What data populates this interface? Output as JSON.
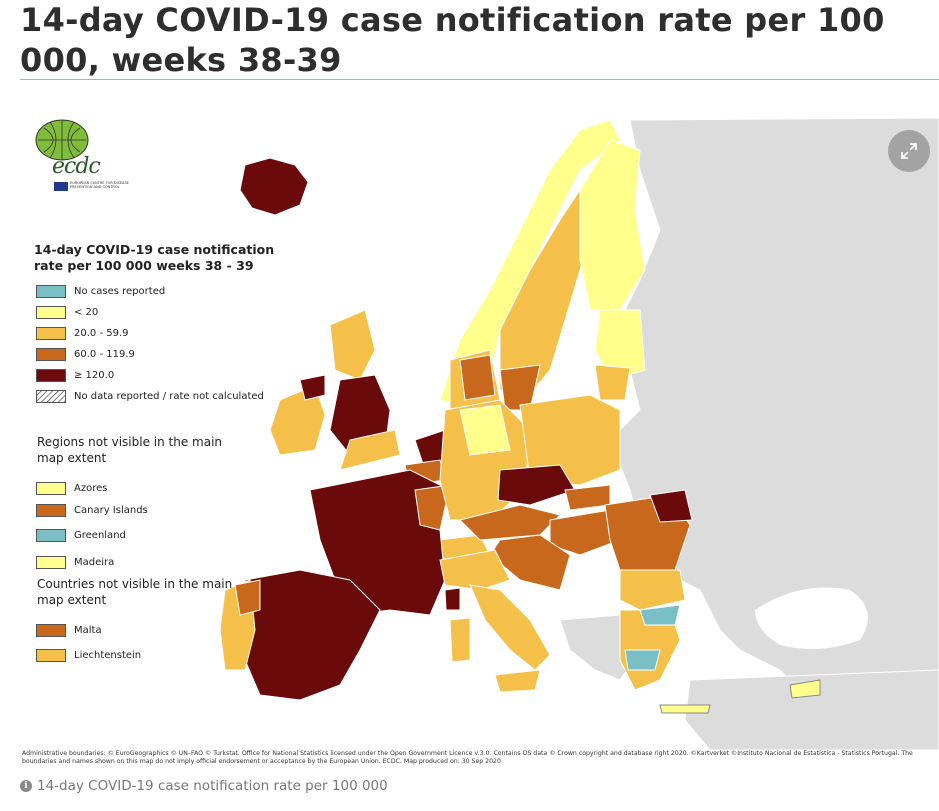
{
  "page": {
    "title": "14-day COVID-19 case notification rate per 100 000, weeks 38-39",
    "caption": "14-day COVID-19 case notification rate per 100 000"
  },
  "map": {
    "expand_icon": "expand-arrows-icon",
    "logo": {
      "name": "ecdc",
      "subtitle": "EUROPEAN CENTRE FOR DISEASE PREVENTION AND CONTROL"
    },
    "legend": {
      "title": "14-day COVID-19 case notification rate per 100 000 weeks 38 - 39",
      "classes": [
        {
          "label": "No cases reported",
          "color": "#7bbfc6"
        },
        {
          "label": "< 20",
          "color": "#ffff8c"
        },
        {
          "label": "20.0 - 59.9",
          "color": "#f5c04a"
        },
        {
          "label": "60.0 - 119.9",
          "color": "#c8681c"
        },
        {
          "label": "≥ 120.0",
          "color": "#6a0a0a"
        },
        {
          "label": "No data reported / rate not calculated",
          "color": "hatched"
        }
      ],
      "regions_heading": "Regions not visible in the main map extent",
      "regions": [
        {
          "label": "Azores",
          "color": "#ffff8c"
        },
        {
          "label": "Canary Islands",
          "color": "#c8681c"
        },
        {
          "label": "Greenland",
          "color": "#7bbfc6"
        },
        {
          "label": "Madeira",
          "color": "#ffff8c"
        }
      ],
      "countries_heading": "Countries not visible in the main map extent",
      "countries": [
        {
          "label": "Malta",
          "color": "#c8681c"
        },
        {
          "label": "Liechtenstein",
          "color": "#f5c04a"
        }
      ]
    },
    "attribution": "Administrative boundaries: © EuroGeographics © UN–FAO © Turkstat. Office for National Statistics licensed under the Open Government Licence v.3.0. Contains OS data © Crown copyright and database right 2020. ©Kartverket ©Instituto Nacional de Estatística - Statistics Portugal. The boundaries and names shown on this map do not imply official endorsement or acceptance by the European Union. ECDC. Map produced on: 30 Sep 2020"
  }
}
